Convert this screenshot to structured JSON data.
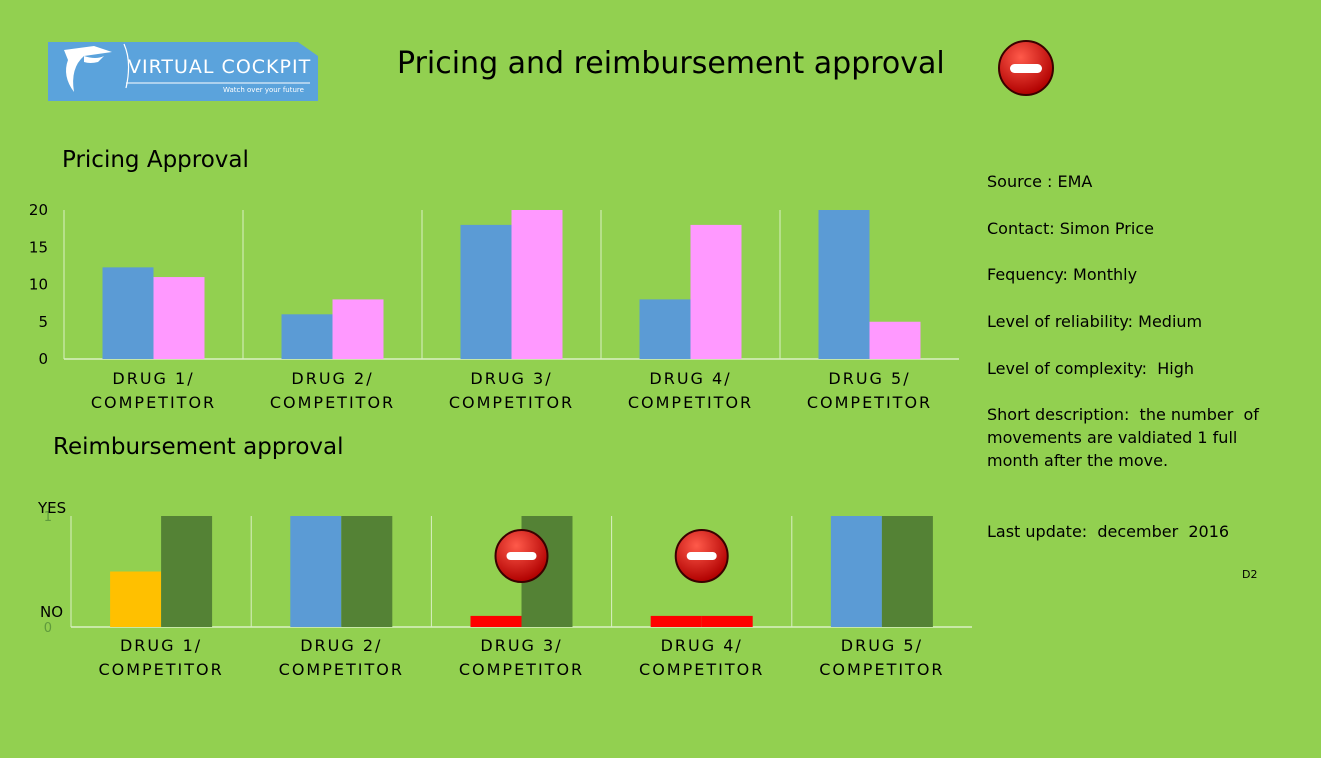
{
  "header": {
    "logo_name": "VIRTUAL COCKPIT",
    "logo_tagline": "Watch over your future",
    "title": "Pricing and reimbursement approval",
    "status_icon": "no-entry-icon"
  },
  "info": {
    "source": "Source : EMA",
    "contact": "Contact: Simon Price",
    "frequency": "Fequency: Monthly",
    "reliability": "Level of reliability: Medium",
    "complexity": "Level of complexity:  High",
    "description": "Short description:  the number  of movements are valdiated 1 full month after the move.",
    "last_update": "Last update:  december  2016",
    "code": "D2"
  },
  "chart_data": [
    {
      "type": "bar",
      "title": "Pricing Approval",
      "categories": [
        "DRUG 1/ COMPETITOR",
        "DRUG 2/ COMPETITOR",
        "DRUG 3/ COMPETITOR",
        "DRUG 4/ COMPETITOR",
        "DRUG 5/ COMPETITOR"
      ],
      "category_lines": [
        [
          "DRUG 1/",
          "COMPETITOR"
        ],
        [
          "DRUG 2/",
          "COMPETITOR"
        ],
        [
          "DRUG 3/",
          "COMPETITOR"
        ],
        [
          "DRUG 4/",
          "COMPETITOR"
        ],
        [
          "DRUG 5/",
          "COMPETITOR"
        ]
      ],
      "series": [
        {
          "values": [
            12.3,
            6,
            18,
            8,
            20
          ],
          "color": "#5b9bd5"
        },
        {
          "values": [
            11,
            8,
            20,
            18,
            5
          ],
          "color": "#ff99ff"
        }
      ],
      "ylim": [
        0,
        20
      ],
      "yticks": [
        "0",
        "5",
        "10",
        "15",
        "20"
      ],
      "grid": false
    },
    {
      "type": "bar",
      "title": "Reimbursement approval",
      "categories": [
        "DRUG 1/ COMPETITOR",
        "DRUG 2/ COMPETITOR",
        "DRUG 3/ COMPETITOR",
        "DRUG 4/ COMPETITOR",
        "DRUG 5/ COMPETITOR"
      ],
      "category_lines": [
        [
          "DRUG 1/",
          "COMPETITOR"
        ],
        [
          "DRUG 2/",
          "COMPETITOR"
        ],
        [
          "DRUG 3/",
          "COMPETITOR"
        ],
        [
          "DRUG 4/",
          "COMPETITOR"
        ],
        [
          "DRUG 5/",
          "COMPETITOR"
        ]
      ],
      "series": [
        {
          "values": [
            0.5,
            1,
            0.1,
            0.1,
            1
          ],
          "colors": [
            "#ffc000",
            "#5b9bd5",
            "#ff0000",
            "#ff0000",
            "#5b9bd5"
          ]
        },
        {
          "values": [
            1,
            1,
            1,
            0.1,
            1
          ],
          "colors": [
            "#548235",
            "#548235",
            "#548235",
            "#ff0000",
            "#548235"
          ]
        }
      ],
      "ylim": [
        0,
        1
      ],
      "yticks": [
        "0",
        "1"
      ],
      "ylabels": [
        "NO",
        "YES"
      ],
      "status_icons": [
        "",
        "",
        "no-entry-icon",
        "no-entry-icon",
        ""
      ],
      "grid": false
    }
  ]
}
